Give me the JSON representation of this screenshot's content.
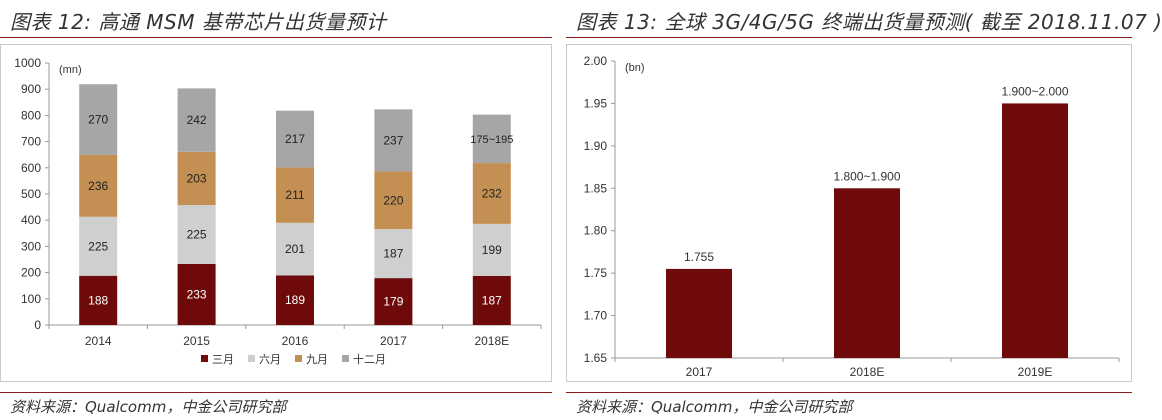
{
  "left": {
    "title": "图表 12:  高通 MSM 基带芯片出货量预计",
    "source": "资料来源：Qualcomm，中金公司研究部"
  },
  "right": {
    "title": "图表 13:  全球 3G/4G/5G 终端出货量预测( 截至 2018.11.07 )",
    "source": "资料来源：Qualcomm，中金公司研究部"
  },
  "chart_data": [
    {
      "type": "bar",
      "stacked": true,
      "title": "",
      "unit": "(mn)",
      "categories": [
        "2014",
        "2015",
        "2016",
        "2017",
        "2018E"
      ],
      "ylim": [
        0,
        1000
      ],
      "yticks": [
        0,
        100,
        200,
        300,
        400,
        500,
        600,
        700,
        800,
        900,
        1000
      ],
      "legend_position": "bottom",
      "grid": false,
      "series": [
        {
          "name": "三月",
          "color": "#6e0a0a",
          "values": [
            188,
            233,
            189,
            179,
            187
          ],
          "labels": [
            "188",
            "233",
            "189",
            "179",
            "187"
          ]
        },
        {
          "name": "六月",
          "color": "#cfcfcf",
          "values": [
            225,
            225,
            201,
            187,
            199
          ],
          "labels": [
            "225",
            "225",
            "201",
            "187",
            "199"
          ]
        },
        {
          "name": "九月",
          "color": "#c48f52",
          "values": [
            236,
            203,
            211,
            220,
            232
          ],
          "labels": [
            "236",
            "203",
            "211",
            "220",
            "232"
          ]
        },
        {
          "name": "十二月",
          "color": "#a6a6a6",
          "values": [
            270,
            242,
            217,
            237,
            185
          ],
          "labels": [
            "270",
            "242",
            "217",
            "237",
            "175~195"
          ]
        }
      ]
    },
    {
      "type": "bar",
      "title": "",
      "unit": "(bn)",
      "categories": [
        "2017",
        "2018E",
        "2019E"
      ],
      "ylim": [
        1.65,
        2.0
      ],
      "yticks": [
        "1.65",
        "1.70",
        "1.75",
        "1.80",
        "1.85",
        "1.90",
        "1.95",
        "2.00"
      ],
      "grid": false,
      "color": "#6e0a0a",
      "values": [
        1.755,
        1.85,
        1.95
      ],
      "labels": [
        "1.755",
        "1.800~1.900",
        "1.900~2.000"
      ]
    }
  ]
}
